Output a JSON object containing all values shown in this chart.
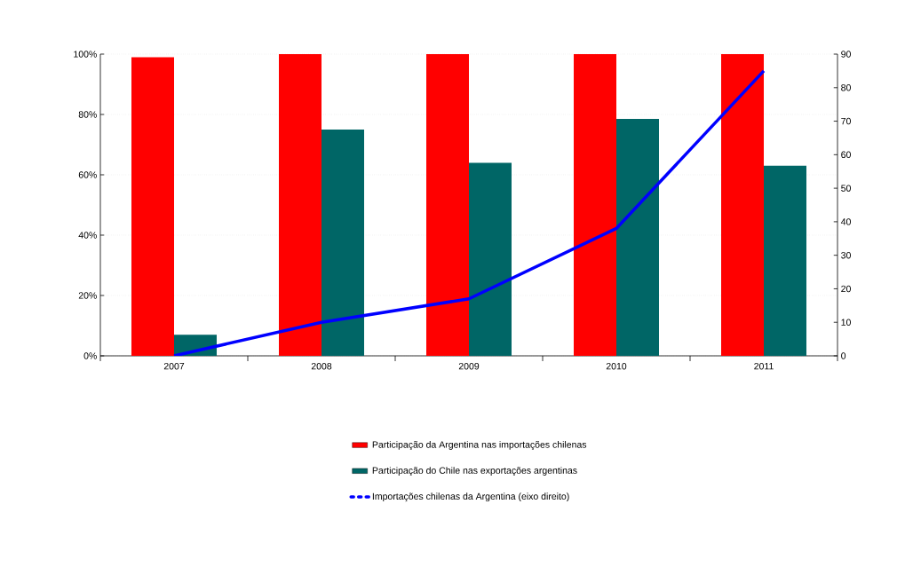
{
  "chart_data": {
    "type": "bar",
    "categories": [
      "2007",
      "2008",
      "2009",
      "2010",
      "2011"
    ],
    "series": [
      {
        "name": "Participação da Argentina nas importações chilenas",
        "color": "#ff0000",
        "values": [
          99,
          100,
          100,
          100,
          100
        ]
      },
      {
        "name": "Participação do Chile nas exportações argentinas",
        "color": "#006666",
        "values": [
          7,
          75,
          64,
          78.5,
          63
        ]
      },
      {
        "name": "Importações chilenas da Argentina (eixo direito)",
        "type": "line",
        "axis": "y2",
        "color": "#0000ff",
        "values": [
          0,
          10,
          17,
          38,
          85
        ]
      }
    ],
    "ylim": [
      0,
      100
    ],
    "yticks": [
      {
        "value": 0,
        "label": "0%"
      },
      {
        "value": 20,
        "label": "20%"
      },
      {
        "value": 40,
        "label": "40%"
      },
      {
        "value": 60,
        "label": "60%"
      },
      {
        "value": 80,
        "label": "80%"
      },
      {
        "value": 100,
        "label": "100%"
      }
    ],
    "y2lim": [
      0,
      90
    ],
    "y2ticks": [
      0,
      10,
      20,
      30,
      40,
      50,
      60,
      70,
      80,
      90
    ],
    "grid": "y",
    "legend": "bottom"
  }
}
